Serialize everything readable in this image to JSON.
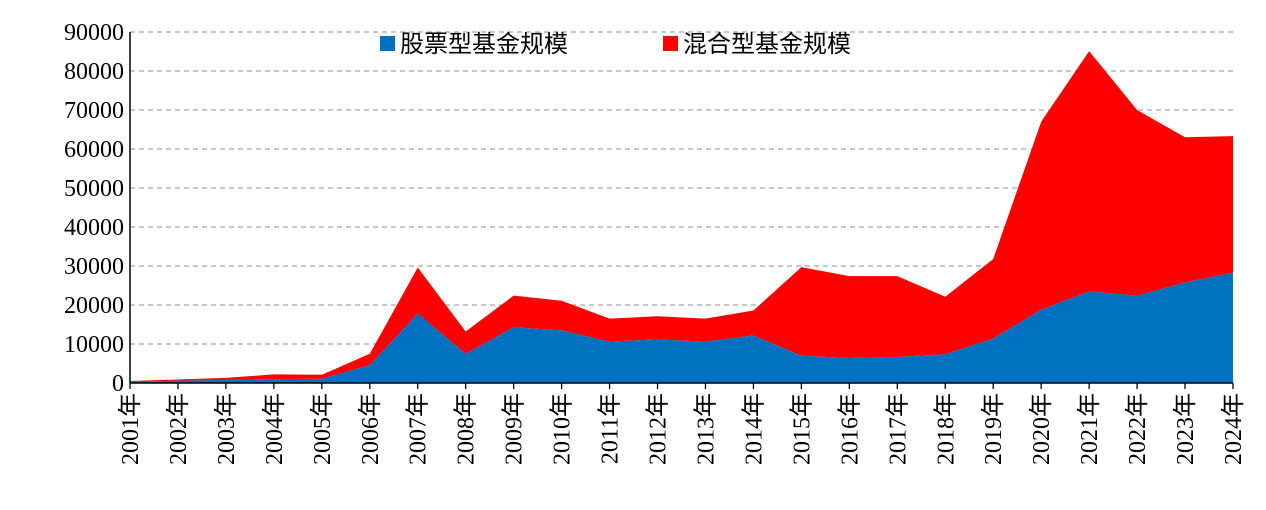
{
  "chart_data": {
    "type": "area",
    "stacked": true,
    "categories": [
      "2001年",
      "2002年",
      "2003年",
      "2004年",
      "2005年",
      "2006年",
      "2007年",
      "2008年",
      "2009年",
      "2010年",
      "2011年",
      "2012年",
      "2013年",
      "2014年",
      "2015年",
      "2016年",
      "2017年",
      "2018年",
      "2019年",
      "2020年",
      "2021年",
      "2022年",
      "2023年",
      "2024年"
    ],
    "series": [
      {
        "name": "股票型基金规模",
        "color": "#0070C0",
        "values": [
          300,
          600,
          800,
          1000,
          1100,
          4600,
          17800,
          7500,
          14300,
          13500,
          10600,
          11200,
          10600,
          12200,
          7000,
          6400,
          6700,
          7400,
          11400,
          18800,
          23500,
          22400,
          25800,
          28300
        ]
      },
      {
        "name": "混合型基金规模",
        "color": "#FF0000",
        "values": [
          200,
          300,
          500,
          1200,
          1000,
          2900,
          11800,
          5700,
          8100,
          7600,
          5900,
          5900,
          5900,
          6400,
          22700,
          21000,
          20700,
          14700,
          20400,
          48200,
          61600,
          47600,
          37200,
          35000
        ]
      }
    ],
    "ylim": [
      0,
      90000
    ],
    "yticks": [
      "0",
      "10000",
      "20000",
      "30000",
      "40000",
      "50000",
      "60000",
      "70000",
      "80000",
      "90000"
    ],
    "grid": "horizontal-dashed",
    "legend_position": "top-center"
  }
}
